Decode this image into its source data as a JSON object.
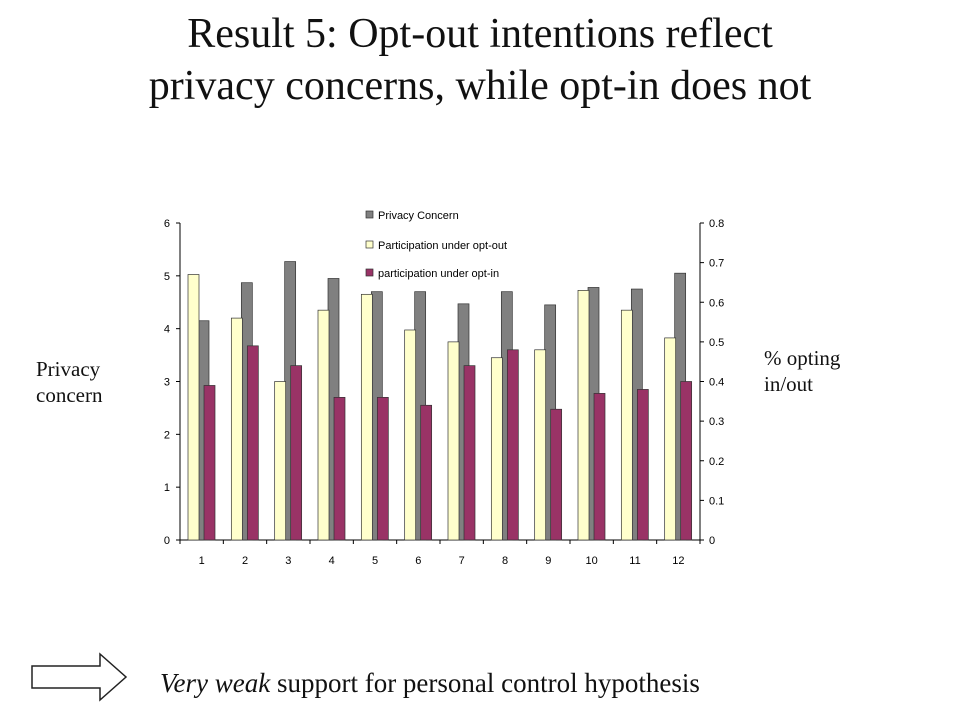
{
  "slide": {
    "title_line1": "Result 5: Opt-out intentions reflect",
    "title_line2": "privacy concerns, while opt-in does not",
    "left_axis_label_line1": "Privacy",
    "left_axis_label_line2": "concern",
    "right_axis_label_line1": "% opting",
    "right_axis_label_line2": "in/out",
    "bottom_emphasis": "Very weak",
    "bottom_rest": " support for personal control hypothesis",
    "arrow_icon": "right-arrow-icon"
  },
  "chart_data": {
    "type": "bar",
    "title": "",
    "categories": [
      "1",
      "2",
      "3",
      "4",
      "5",
      "6",
      "7",
      "8",
      "9",
      "10",
      "11",
      "12"
    ],
    "y_left": {
      "label": "Privacy concern",
      "ylim": [
        0,
        6
      ],
      "ticks": [
        "0",
        "1",
        "2",
        "3",
        "4",
        "5",
        "6"
      ]
    },
    "y_right": {
      "label": "% opting in/out",
      "ylim": [
        0,
        0.8
      ],
      "ticks": [
        "0",
        "0.1",
        "0.2",
        "0.3",
        "0.4",
        "0.5",
        "0.6",
        "0.7",
        "0.8"
      ]
    },
    "series": [
      {
        "name": "Privacy Concern",
        "axis": "left",
        "color": "#808080",
        "values": [
          4.15,
          4.87,
          5.27,
          4.95,
          4.7,
          4.7,
          4.47,
          4.7,
          4.45,
          4.78,
          4.75,
          5.05
        ]
      },
      {
        "name": "Participation under opt-out",
        "axis": "right",
        "color": "#ffffcc",
        "values": [
          0.67,
          0.56,
          0.4,
          0.58,
          0.62,
          0.53,
          0.5,
          0.46,
          0.48,
          0.63,
          0.58,
          0.51
        ]
      },
      {
        "name": "participation under opt-in",
        "axis": "right",
        "color": "#993366",
        "values": [
          0.39,
          0.49,
          0.44,
          0.36,
          0.36,
          0.34,
          0.44,
          0.48,
          0.33,
          0.37,
          0.38,
          0.4
        ]
      }
    ],
    "legend": "top-center",
    "grid": false
  }
}
